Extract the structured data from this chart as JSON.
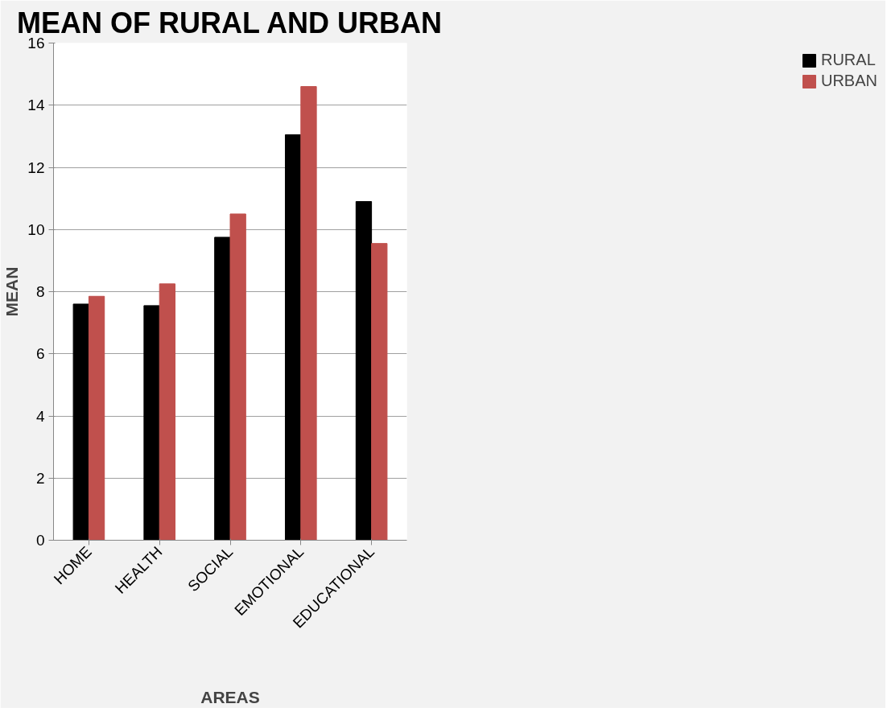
{
  "chart_data": {
    "type": "bar",
    "title": "MEAN OF RURAL AND URBAN",
    "xlabel": "AREAS",
    "ylabel": "MEAN",
    "categories": [
      "HOME",
      "HEALTH",
      "SOCIAL",
      "EMOTIONAL",
      "EDUCATIONAL"
    ],
    "series": [
      {
        "name": "RURAL",
        "color": "#000000",
        "values": [
          7.6,
          7.55,
          9.75,
          13.05,
          10.9
        ]
      },
      {
        "name": "URBAN",
        "color": "#c0504d",
        "values": [
          7.85,
          8.25,
          10.5,
          14.6,
          9.55
        ]
      }
    ],
    "ylim": [
      0,
      16
    ],
    "yticks": [
      0,
      2,
      4,
      6,
      8,
      10,
      12,
      14,
      16
    ],
    "grid": "y",
    "legend": "right"
  }
}
